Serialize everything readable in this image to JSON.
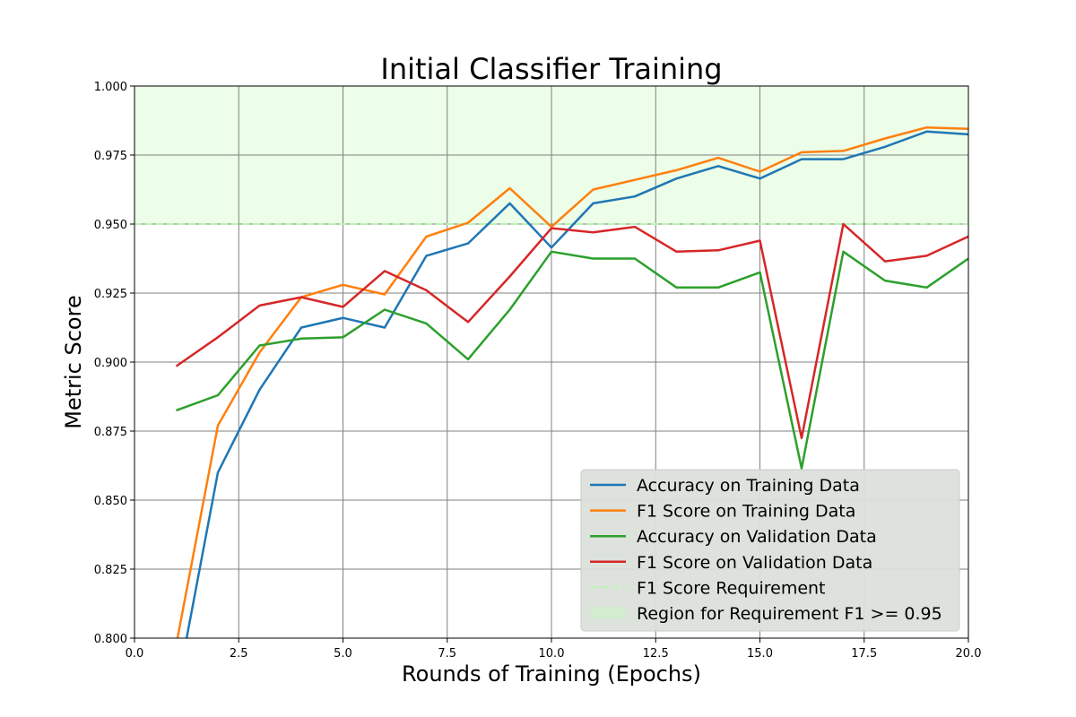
{
  "chart_data": {
    "type": "line",
    "title": "Initial Classifier Training",
    "xlabel": "Rounds of Training (Epochs)",
    "ylabel": "Metric Score",
    "xlim": [
      0,
      20
    ],
    "ylim": [
      0.8,
      1.0
    ],
    "xticks": [
      "0.0",
      "2.5",
      "5.0",
      "7.5",
      "10.0",
      "12.5",
      "15.0",
      "17.5",
      "20.0"
    ],
    "xtick_values": [
      0,
      2.5,
      5,
      7.5,
      10,
      12.5,
      15,
      17.5,
      20
    ],
    "yticks": [
      "0.800",
      "0.825",
      "0.850",
      "0.875",
      "0.900",
      "0.925",
      "0.950",
      "0.975",
      "1.000"
    ],
    "ytick_values": [
      0.8,
      0.825,
      0.85,
      0.875,
      0.9,
      0.925,
      0.95,
      0.975,
      1.0
    ],
    "grid": true,
    "legend_position": "lower-right",
    "x": [
      1,
      2,
      3,
      4,
      5,
      6,
      7,
      8,
      9,
      10,
      11,
      12,
      13,
      14,
      15,
      16,
      17,
      18,
      19,
      20
    ],
    "series": [
      {
        "name": "Accuracy on Training Data",
        "color": "#1f77b4",
        "values": [
          0.78,
          0.86,
          0.89,
          0.9125,
          0.916,
          0.9125,
          0.9385,
          0.943,
          0.9575,
          0.9415,
          0.9575,
          0.96,
          0.9665,
          0.971,
          0.9665,
          0.9735,
          0.9735,
          0.978,
          0.9835,
          0.9825
        ]
      },
      {
        "name": "F1 Score on Training Data",
        "color": "#ff7f0e",
        "values": [
          0.7975,
          0.877,
          0.9035,
          0.9235,
          0.928,
          0.9245,
          0.9455,
          0.9505,
          0.963,
          0.949,
          0.9625,
          0.966,
          0.9695,
          0.974,
          0.969,
          0.976,
          0.9765,
          0.981,
          0.985,
          0.9845
        ]
      },
      {
        "name": "Accuracy on Validation Data",
        "color": "#2ca02c",
        "values": [
          0.8825,
          0.888,
          0.906,
          0.9085,
          0.909,
          0.919,
          0.914,
          0.901,
          0.919,
          0.94,
          0.9375,
          0.9375,
          0.927,
          0.927,
          0.9325,
          0.8615,
          0.94,
          0.9295,
          0.927,
          0.9375
        ]
      },
      {
        "name": "F1 Score on Validation Data",
        "color": "#d62728",
        "values": [
          0.8985,
          0.909,
          0.9205,
          0.9235,
          0.92,
          0.933,
          0.926,
          0.9145,
          0.931,
          0.9485,
          0.947,
          0.949,
          0.94,
          0.9405,
          0.944,
          0.8725,
          0.95,
          0.9365,
          0.9385,
          0.9455
        ]
      }
    ],
    "requirement": {
      "name": "F1 Score Requirement",
      "value": 0.95,
      "color": "#b9f5b0"
    },
    "region": {
      "name": "Region for Requirement F1 >= 0.95",
      "from": 0.95,
      "to": 1.0,
      "color": "#ecfde8"
    }
  }
}
